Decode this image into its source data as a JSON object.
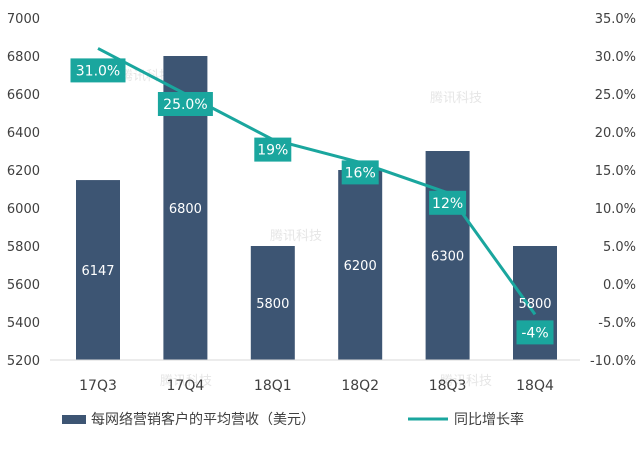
{
  "chart_data": {
    "type": "bar",
    "combo": "bar+line",
    "categories": [
      "17Q3",
      "17Q4",
      "18Q1",
      "18Q2",
      "18Q3",
      "18Q4"
    ],
    "series": [
      {
        "name": "每网络营销客户的平均营收（美元）",
        "type": "bar",
        "axis": "left",
        "values": [
          6147,
          6800,
          5800,
          6200,
          6300,
          5800
        ],
        "labels": [
          "6147",
          "6800",
          "5800",
          "6200",
          "6300",
          "5800"
        ],
        "color": "#3d5573"
      },
      {
        "name": "同比增长率",
        "type": "line",
        "axis": "right",
        "values": [
          31.0,
          25.0,
          19.0,
          16.0,
          12.0,
          -4.0
        ],
        "labels": [
          "31.0%",
          "25.0%",
          "19%",
          "16%",
          "12%",
          "-4%"
        ],
        "color": "#1aa69e"
      }
    ],
    "y_left": {
      "min": 5200,
      "max": 7000,
      "ticks": [
        5200,
        5400,
        5600,
        5800,
        6000,
        6200,
        6400,
        6600,
        6800,
        7000
      ],
      "tick_labels": [
        "5200",
        "5400",
        "5600",
        "5800",
        "6000",
        "6200",
        "6400",
        "6600",
        "6800",
        "7000"
      ]
    },
    "y_right": {
      "min": -10,
      "max": 35,
      "ticks": [
        -10,
        -5,
        0,
        5,
        10,
        15,
        20,
        25,
        30,
        35
      ],
      "tick_labels": [
        "-10.0%",
        "-5.0%",
        "0.0%",
        "5.0%",
        "10.0%",
        "15.0%",
        "20.0%",
        "25.0%",
        "30.0%",
        "35.0%"
      ]
    },
    "grid": false,
    "legend_position": "bottom",
    "watermark": "腾讯科技"
  },
  "colors": {
    "bar": "#3d5573",
    "line": "#1aa69e",
    "label_box": "#1aa69e",
    "axis_text": "#404040"
  }
}
